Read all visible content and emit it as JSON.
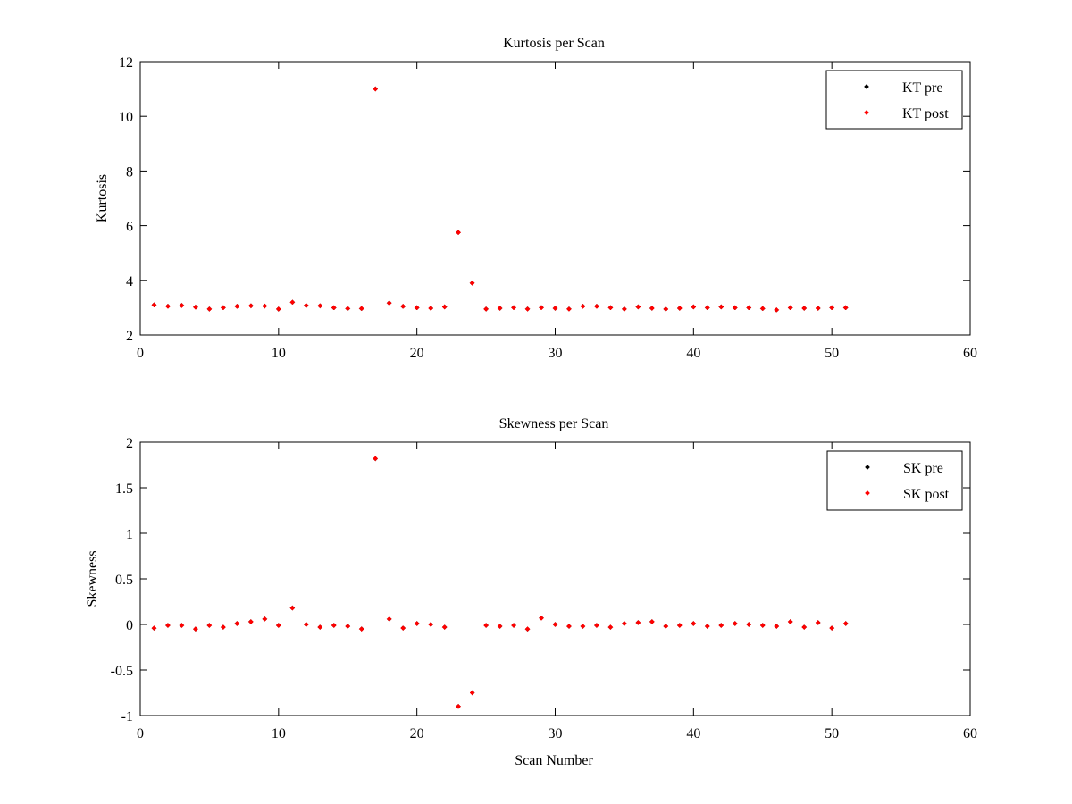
{
  "colors": {
    "pre": "#000000",
    "post": "#ff0000",
    "axis": "#000000",
    "background": "#ffffff"
  },
  "chart_data": [
    {
      "type": "scatter",
      "title": "Kurtosis per Scan",
      "xlabel": "",
      "ylabel": "Kurtosis",
      "xlim": [
        0,
        60
      ],
      "ylim": [
        2,
        12
      ],
      "xticks": [
        0,
        10,
        20,
        30,
        40,
        50,
        60
      ],
      "yticks": [
        2,
        4,
        6,
        8,
        10,
        12
      ],
      "grid": false,
      "legend_position": "top-right",
      "x": [
        1,
        2,
        3,
        4,
        5,
        6,
        7,
        8,
        9,
        10,
        11,
        12,
        13,
        14,
        15,
        16,
        17,
        18,
        19,
        20,
        21,
        22,
        23,
        24,
        25,
        26,
        27,
        28,
        29,
        30,
        31,
        32,
        33,
        34,
        35,
        36,
        37,
        38,
        39,
        40,
        41,
        42,
        43,
        44,
        45,
        46,
        47,
        48,
        49,
        50,
        51
      ],
      "series": [
        {
          "name": "KT pre",
          "color": "#000000",
          "values": [
            3.1,
            3.05,
            3.08,
            3.02,
            2.95,
            3.0,
            3.05,
            3.07,
            3.06,
            2.95,
            3.2,
            3.08,
            3.07,
            3.0,
            2.97,
            2.97,
            11.0,
            3.17,
            3.05,
            3.0,
            2.98,
            3.03,
            5.75,
            3.9,
            2.95,
            2.98,
            3.0,
            2.95,
            3.0,
            2.98,
            2.95,
            3.05,
            3.05,
            3.0,
            2.95,
            3.03,
            2.98,
            2.95,
            2.98,
            3.03,
            3.0,
            3.03,
            3.0,
            3.0,
            2.97,
            2.92,
            3.0,
            2.98,
            2.98,
            3.0,
            3.0
          ]
        },
        {
          "name": "KT post",
          "color": "#ff0000",
          "values": [
            3.1,
            3.05,
            3.08,
            3.02,
            2.95,
            3.0,
            3.05,
            3.07,
            3.06,
            2.95,
            3.2,
            3.08,
            3.07,
            3.0,
            2.97,
            2.97,
            11.0,
            3.17,
            3.05,
            3.0,
            2.98,
            3.03,
            5.75,
            3.9,
            2.95,
            2.98,
            3.0,
            2.95,
            3.0,
            2.98,
            2.95,
            3.05,
            3.05,
            3.0,
            2.95,
            3.03,
            2.98,
            2.95,
            2.98,
            3.03,
            3.0,
            3.03,
            3.0,
            3.0,
            2.97,
            2.92,
            3.0,
            2.98,
            2.98,
            3.0,
            3.0
          ]
        }
      ]
    },
    {
      "type": "scatter",
      "title": "Skewness per Scan",
      "xlabel": "Scan Number",
      "ylabel": "Skewness",
      "xlim": [
        0,
        60
      ],
      "ylim": [
        -1,
        2
      ],
      "xticks": [
        0,
        10,
        20,
        30,
        40,
        50,
        60
      ],
      "yticks": [
        -1,
        -0.5,
        0,
        0.5,
        1,
        1.5,
        2
      ],
      "grid": false,
      "legend_position": "top-right",
      "x": [
        1,
        2,
        3,
        4,
        5,
        6,
        7,
        8,
        9,
        10,
        11,
        12,
        13,
        14,
        15,
        16,
        17,
        18,
        19,
        20,
        21,
        22,
        23,
        24,
        25,
        26,
        27,
        28,
        29,
        30,
        31,
        32,
        33,
        34,
        35,
        36,
        37,
        38,
        39,
        40,
        41,
        42,
        43,
        44,
        45,
        46,
        47,
        48,
        49,
        50,
        51
      ],
      "series": [
        {
          "name": "SK pre",
          "color": "#000000",
          "values": [
            -0.04,
            -0.01,
            -0.01,
            -0.05,
            -0.01,
            -0.03,
            0.01,
            0.03,
            0.06,
            -0.01,
            0.18,
            0.0,
            -0.03,
            -0.01,
            -0.02,
            -0.05,
            1.82,
            0.06,
            -0.04,
            0.01,
            0.0,
            -0.03,
            -0.9,
            -0.75,
            -0.01,
            -0.02,
            -0.01,
            -0.05,
            0.07,
            0.0,
            -0.02,
            -0.02,
            -0.01,
            -0.03,
            0.01,
            0.02,
            0.03,
            -0.02,
            -0.01,
            0.01,
            -0.02,
            -0.01,
            0.01,
            0.0,
            -0.01,
            -0.02,
            0.03,
            -0.03,
            0.02,
            -0.04,
            0.01
          ]
        },
        {
          "name": "SK post",
          "color": "#ff0000",
          "values": [
            -0.04,
            -0.01,
            -0.01,
            -0.05,
            -0.01,
            -0.03,
            0.01,
            0.03,
            0.06,
            -0.01,
            0.18,
            0.0,
            -0.03,
            -0.01,
            -0.02,
            -0.05,
            1.82,
            0.06,
            -0.04,
            0.01,
            0.0,
            -0.03,
            -0.9,
            -0.75,
            -0.01,
            -0.02,
            -0.01,
            -0.05,
            0.07,
            0.0,
            -0.02,
            -0.02,
            -0.01,
            -0.03,
            0.01,
            0.02,
            0.03,
            -0.02,
            -0.01,
            0.01,
            -0.02,
            -0.01,
            0.01,
            0.0,
            -0.01,
            -0.02,
            0.03,
            -0.03,
            0.02,
            -0.04,
            0.01
          ]
        }
      ]
    }
  ]
}
